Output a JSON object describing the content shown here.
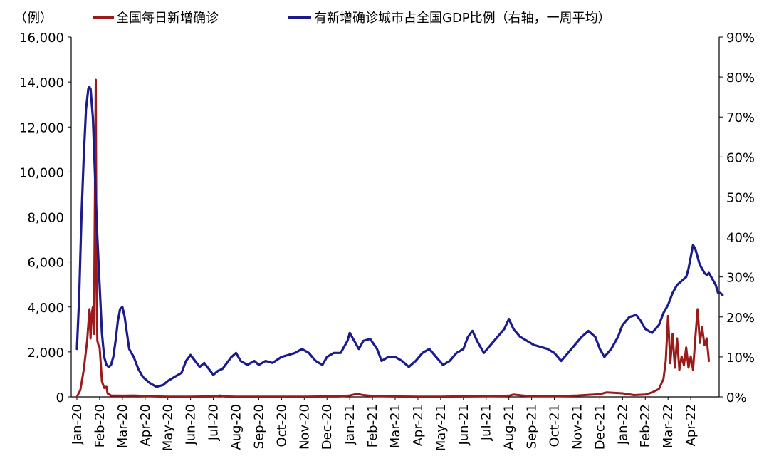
{
  "chart_data": {
    "type": "line",
    "unit_label": "（例）",
    "legend": [
      "全国每日新增确诊",
      "有新增确诊城市占全国GDP比例（右轴，一周平均）"
    ],
    "left_axis": {
      "min": 0,
      "max": 16000,
      "ticks": [
        "0",
        "2,000",
        "4,000",
        "6,000",
        "8,000",
        "10,000",
        "12,000",
        "14,000",
        "16,000"
      ]
    },
    "right_axis": {
      "min": 0,
      "max": 90,
      "unit": "%",
      "ticks": [
        "0%",
        "10%",
        "20%",
        "30%",
        "40%",
        "50%",
        "60%",
        "70%",
        "80%",
        "90%"
      ]
    },
    "x_categories": [
      "Jan-20",
      "Feb-20",
      "Mar-20",
      "Apr-20",
      "May-20",
      "Jun-20",
      "Jul-20",
      "Aug-20",
      "Sep-20",
      "Oct-20",
      "Nov-20",
      "Dec-20",
      "Jan-21",
      "Feb-21",
      "Mar-21",
      "Apr-21",
      "May-21",
      "Jun-21",
      "Jul-21",
      "Aug-21",
      "Sep-21",
      "Oct-21",
      "Nov-21",
      "Dec-21",
      "Jan-22",
      "Feb-22",
      "Mar-22",
      "Apr-22"
    ],
    "series": [
      {
        "name": "全国每日新增确诊",
        "axis": "left",
        "color": "#9b1b1b",
        "points": [
          [
            0,
            0
          ],
          [
            0.15,
            300
          ],
          [
            0.3,
            1200
          ],
          [
            0.45,
            2500
          ],
          [
            0.55,
            3900
          ],
          [
            0.6,
            2600
          ],
          [
            0.65,
            3700
          ],
          [
            0.7,
            4000
          ],
          [
            0.75,
            2800
          ],
          [
            0.8,
            9800
          ],
          [
            0.83,
            14100
          ],
          [
            0.86,
            5000
          ],
          [
            0.9,
            2500
          ],
          [
            0.95,
            2300
          ],
          [
            1.0,
            2200
          ],
          [
            1.05,
            1500
          ],
          [
            1.1,
            700
          ],
          [
            1.2,
            400
          ],
          [
            1.3,
            450
          ],
          [
            1.35,
            150
          ],
          [
            1.5,
            60
          ],
          [
            2,
            50
          ],
          [
            2.5,
            60
          ],
          [
            3,
            40
          ],
          [
            3.5,
            20
          ],
          [
            4,
            10
          ],
          [
            4.5,
            10
          ],
          [
            5,
            10
          ],
          [
            5.5,
            15
          ],
          [
            6,
            20
          ],
          [
            6.3,
            60
          ],
          [
            6.5,
            20
          ],
          [
            7,
            10
          ],
          [
            8,
            10
          ],
          [
            9,
            10
          ],
          [
            10,
            10
          ],
          [
            11,
            20
          ],
          [
            11.5,
            20
          ],
          [
            12,
            60
          ],
          [
            12.3,
            130
          ],
          [
            12.6,
            80
          ],
          [
            13,
            40
          ],
          [
            14,
            20
          ],
          [
            15,
            10
          ],
          [
            16,
            10
          ],
          [
            17,
            20
          ],
          [
            18,
            30
          ],
          [
            19,
            50
          ],
          [
            19.2,
            100
          ],
          [
            19.6,
            60
          ],
          [
            20,
            30
          ],
          [
            21,
            30
          ],
          [
            22,
            60
          ],
          [
            23,
            120
          ],
          [
            23.3,
            200
          ],
          [
            23.6,
            180
          ],
          [
            24,
            160
          ],
          [
            24.5,
            80
          ],
          [
            25,
            100
          ],
          [
            25.3,
            200
          ],
          [
            25.6,
            350
          ],
          [
            25.8,
            800
          ],
          [
            25.9,
            1600
          ],
          [
            26.0,
            3600
          ],
          [
            26.1,
            1500
          ],
          [
            26.2,
            2800
          ],
          [
            26.3,
            1300
          ],
          [
            26.4,
            2600
          ],
          [
            26.5,
            1200
          ],
          [
            26.6,
            1800
          ],
          [
            26.7,
            1400
          ],
          [
            26.8,
            2200
          ],
          [
            26.9,
            1300
          ],
          [
            27.0,
            1800
          ],
          [
            27.1,
            1200
          ],
          [
            27.2,
            2600
          ],
          [
            27.3,
            3900
          ],
          [
            27.4,
            2400
          ],
          [
            27.5,
            3100
          ],
          [
            27.6,
            2300
          ],
          [
            27.7,
            2600
          ],
          [
            27.8,
            1600
          ]
        ]
      },
      {
        "name": "有新增确诊城市占全国GDP比例（右轴，一周平均）",
        "axis": "right",
        "color": "#1b1b8c",
        "points": [
          [
            0,
            12
          ],
          [
            0.1,
            25
          ],
          [
            0.2,
            45
          ],
          [
            0.3,
            60
          ],
          [
            0.4,
            72
          ],
          [
            0.5,
            77
          ],
          [
            0.55,
            77.5
          ],
          [
            0.6,
            77
          ],
          [
            0.7,
            70
          ],
          [
            0.8,
            55
          ],
          [
            0.9,
            40
          ],
          [
            1.0,
            28
          ],
          [
            1.1,
            16
          ],
          [
            1.2,
            10
          ],
          [
            1.3,
            8
          ],
          [
            1.4,
            7.5
          ],
          [
            1.5,
            8
          ],
          [
            1.6,
            10
          ],
          [
            1.7,
            14
          ],
          [
            1.8,
            19
          ],
          [
            1.9,
            22
          ],
          [
            2.0,
            22.5
          ],
          [
            2.1,
            20
          ],
          [
            2.2,
            16
          ],
          [
            2.3,
            12
          ],
          [
            2.5,
            10
          ],
          [
            2.7,
            7
          ],
          [
            2.9,
            5
          ],
          [
            3.2,
            3.5
          ],
          [
            3.5,
            2.5
          ],
          [
            3.8,
            3
          ],
          [
            4.0,
            4
          ],
          [
            4.3,
            5
          ],
          [
            4.6,
            6
          ],
          [
            4.8,
            9
          ],
          [
            5.0,
            10.5
          ],
          [
            5.2,
            9
          ],
          [
            5.4,
            7.5
          ],
          [
            5.6,
            8.5
          ],
          [
            5.8,
            7
          ],
          [
            6.0,
            5.5
          ],
          [
            6.2,
            6.5
          ],
          [
            6.4,
            7
          ],
          [
            6.6,
            8.5
          ],
          [
            6.8,
            10
          ],
          [
            7.0,
            11
          ],
          [
            7.2,
            9
          ],
          [
            7.5,
            8
          ],
          [
            7.8,
            9
          ],
          [
            8.0,
            8
          ],
          [
            8.3,
            9
          ],
          [
            8.6,
            8.5
          ],
          [
            9.0,
            10
          ],
          [
            9.3,
            10.5
          ],
          [
            9.6,
            11
          ],
          [
            9.9,
            12
          ],
          [
            10.2,
            11
          ],
          [
            10.5,
            9
          ],
          [
            10.8,
            8
          ],
          [
            11.0,
            10
          ],
          [
            11.3,
            11
          ],
          [
            11.6,
            11
          ],
          [
            11.9,
            14
          ],
          [
            12.0,
            16
          ],
          [
            12.2,
            14
          ],
          [
            12.4,
            12
          ],
          [
            12.6,
            14
          ],
          [
            12.9,
            14.5
          ],
          [
            13.2,
            12
          ],
          [
            13.4,
            9
          ],
          [
            13.7,
            10
          ],
          [
            14.0,
            10
          ],
          [
            14.3,
            9
          ],
          [
            14.6,
            7.5
          ],
          [
            14.9,
            9
          ],
          [
            15.2,
            11
          ],
          [
            15.5,
            12
          ],
          [
            15.8,
            10
          ],
          [
            16.1,
            8
          ],
          [
            16.4,
            9
          ],
          [
            16.7,
            11
          ],
          [
            17.0,
            12
          ],
          [
            17.2,
            15
          ],
          [
            17.4,
            16.5
          ],
          [
            17.6,
            14
          ],
          [
            17.9,
            11
          ],
          [
            18.2,
            13
          ],
          [
            18.5,
            15
          ],
          [
            18.8,
            17
          ],
          [
            19.0,
            19.5
          ],
          [
            19.2,
            17
          ],
          [
            19.5,
            15
          ],
          [
            19.8,
            14
          ],
          [
            20.1,
            13
          ],
          [
            20.4,
            12.5
          ],
          [
            20.7,
            12
          ],
          [
            21.0,
            11
          ],
          [
            21.3,
            9
          ],
          [
            21.6,
            11
          ],
          [
            21.9,
            13
          ],
          [
            22.2,
            15
          ],
          [
            22.5,
            16.5
          ],
          [
            22.8,
            15
          ],
          [
            23.0,
            12
          ],
          [
            23.2,
            10
          ],
          [
            23.5,
            12
          ],
          [
            23.8,
            15
          ],
          [
            24.0,
            18
          ],
          [
            24.3,
            20
          ],
          [
            24.6,
            20.5
          ],
          [
            24.8,
            19
          ],
          [
            25.0,
            17
          ],
          [
            25.3,
            16
          ],
          [
            25.6,
            18
          ],
          [
            25.8,
            21
          ],
          [
            26.0,
            23
          ],
          [
            26.2,
            26
          ],
          [
            26.4,
            28
          ],
          [
            26.6,
            29
          ],
          [
            26.8,
            30
          ],
          [
            26.9,
            32
          ],
          [
            27.0,
            35
          ],
          [
            27.1,
            38
          ],
          [
            27.2,
            37
          ],
          [
            27.3,
            35
          ],
          [
            27.4,
            33
          ],
          [
            27.5,
            32
          ],
          [
            27.6,
            31
          ],
          [
            27.7,
            30.5
          ],
          [
            27.8,
            31
          ],
          [
            27.9,
            30
          ],
          [
            28.0,
            29
          ],
          [
            28.1,
            28
          ],
          [
            28.2,
            26
          ],
          [
            28.3,
            26
          ],
          [
            28.4,
            25.5
          ]
        ]
      }
    ]
  }
}
